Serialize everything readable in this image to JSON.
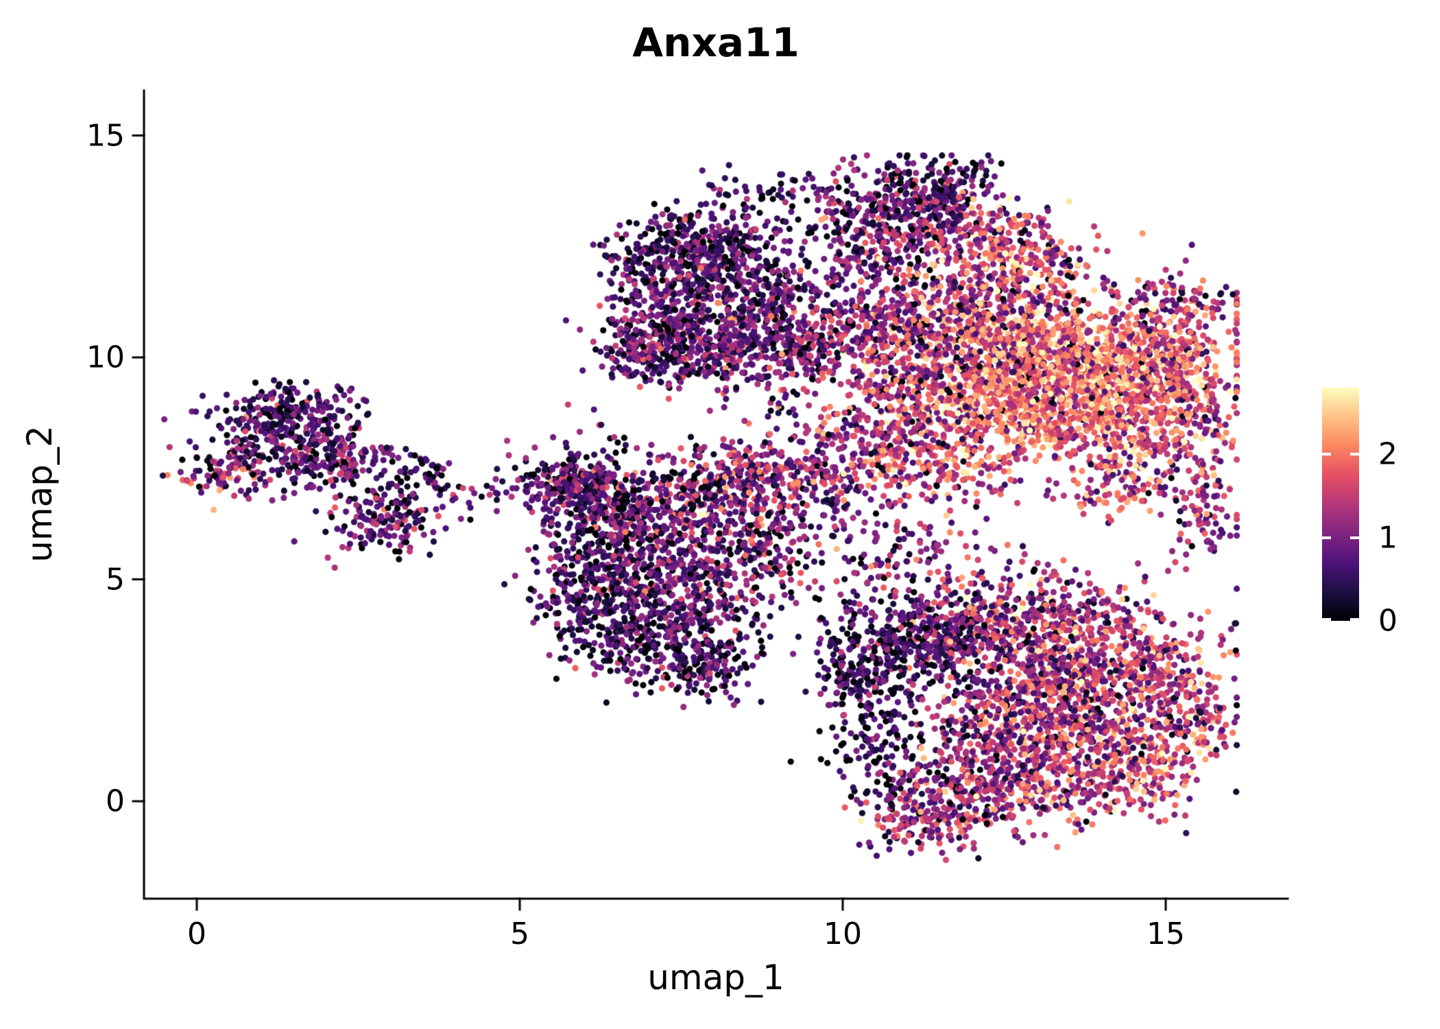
{
  "chart_data": {
    "type": "scatter",
    "title": "Anxa11",
    "xlabel": "umap_1",
    "ylabel": "umap_2",
    "x_ticks": [
      0,
      5,
      10,
      15
    ],
    "y_ticks": [
      0,
      5,
      10,
      15
    ],
    "xlim": [
      -0.8,
      16.9
    ],
    "ylim": [
      -2.2,
      15.7
    ],
    "grid": false,
    "legend_position": "right",
    "colorbar": {
      "label_values": [
        0,
        1,
        2
      ],
      "ticks": [
        0,
        1,
        2
      ],
      "vmin": 0,
      "vmax": 2.8,
      "colormap": "magma",
      "stops": [
        "#000004",
        "#1c1044",
        "#4f127b",
        "#812581",
        "#b5367a",
        "#e55064",
        "#fb8761",
        "#fec287",
        "#fcfdbf"
      ]
    },
    "point_radius_px": 4.6,
    "seed": 42,
    "cluster_format": [
      "center_x",
      "center_y",
      "sd_x",
      "sd_y",
      "n_points",
      "expression_mean",
      "expression_sd"
    ],
    "clusters": [
      [
        1.3,
        8.3,
        0.55,
        0.5,
        260,
        0.7,
        0.55
      ],
      [
        2.1,
        7.7,
        0.5,
        0.4,
        170,
        0.7,
        0.5
      ],
      [
        0.4,
        7.35,
        0.35,
        0.25,
        90,
        0.9,
        0.7
      ],
      [
        2.9,
        6.35,
        0.45,
        0.4,
        160,
        0.7,
        0.55
      ],
      [
        1.6,
        8.95,
        0.45,
        0.22,
        80,
        0.45,
        0.45
      ],
      [
        3.5,
        7.4,
        0.3,
        0.2,
        40,
        0.6,
        0.5
      ],
      [
        6.2,
        6.9,
        0.5,
        0.6,
        280,
        0.75,
        0.55
      ],
      [
        7.3,
        6.4,
        0.65,
        0.55,
        300,
        0.85,
        0.6
      ],
      [
        6.5,
        5.3,
        0.55,
        0.65,
        270,
        0.6,
        0.5
      ],
      [
        7.6,
        4.6,
        0.55,
        0.6,
        250,
        0.7,
        0.55
      ],
      [
        6.9,
        3.6,
        0.5,
        0.5,
        200,
        0.5,
        0.5
      ],
      [
        7.9,
        3.1,
        0.4,
        0.45,
        150,
        0.5,
        0.5
      ],
      [
        8.6,
        5.8,
        0.5,
        0.75,
        220,
        0.9,
        0.6
      ],
      [
        5.9,
        4.6,
        0.35,
        0.6,
        130,
        0.45,
        0.45
      ],
      [
        5.8,
        7.1,
        0.3,
        0.45,
        100,
        0.6,
        0.5
      ],
      [
        8.3,
        7.3,
        0.45,
        0.4,
        150,
        1.0,
        0.6
      ],
      [
        9.4,
        7.2,
        0.6,
        0.35,
        110,
        1.0,
        0.6
      ],
      [
        8.0,
        12.7,
        0.55,
        0.4,
        220,
        0.6,
        0.5
      ],
      [
        7.6,
        11.9,
        0.5,
        0.5,
        220,
        0.7,
        0.55
      ],
      [
        7.4,
        10.7,
        0.55,
        0.5,
        260,
        0.8,
        0.55
      ],
      [
        8.3,
        10.2,
        0.6,
        0.5,
        260,
        0.85,
        0.6
      ],
      [
        8.8,
        11.4,
        0.5,
        0.55,
        200,
        0.7,
        0.55
      ],
      [
        9.4,
        10.2,
        0.4,
        0.5,
        150,
        0.9,
        0.6
      ],
      [
        7.0,
        9.9,
        0.4,
        0.4,
        120,
        0.7,
        0.5
      ],
      [
        6.8,
        12.2,
        0.3,
        0.4,
        70,
        0.6,
        0.5
      ],
      [
        10.6,
        13.4,
        0.5,
        0.45,
        160,
        0.75,
        0.6
      ],
      [
        11.5,
        13.9,
        0.5,
        0.35,
        150,
        0.55,
        0.5
      ],
      [
        11.4,
        13.0,
        0.5,
        0.4,
        150,
        1.0,
        0.65
      ],
      [
        12.3,
        12.7,
        0.5,
        0.5,
        160,
        1.5,
        0.6
      ],
      [
        10.3,
        12.4,
        0.4,
        0.4,
        100,
        0.9,
        0.6
      ],
      [
        12.9,
        11.9,
        0.45,
        0.45,
        130,
        1.7,
        0.55
      ],
      [
        12.3,
        10.3,
        0.8,
        0.7,
        420,
        1.8,
        0.55
      ],
      [
        13.6,
        9.9,
        0.8,
        0.6,
        450,
        2.0,
        0.5
      ],
      [
        14.8,
        9.8,
        0.7,
        0.6,
        380,
        1.9,
        0.55
      ],
      [
        12.6,
        8.9,
        0.7,
        0.5,
        320,
        2.0,
        0.5
      ],
      [
        13.9,
        8.6,
        0.7,
        0.5,
        300,
        1.8,
        0.55
      ],
      [
        11.2,
        9.3,
        0.6,
        0.6,
        250,
        1.4,
        0.6
      ],
      [
        10.6,
        10.6,
        0.5,
        0.5,
        180,
        1.1,
        0.6
      ],
      [
        11.6,
        11.3,
        0.6,
        0.5,
        180,
        1.2,
        0.6
      ],
      [
        15.3,
        8.5,
        0.45,
        0.7,
        200,
        1.5,
        0.6
      ],
      [
        15.1,
        11.0,
        0.5,
        0.5,
        150,
        1.3,
        0.6
      ],
      [
        11.5,
        7.5,
        0.7,
        0.45,
        200,
        1.6,
        0.6
      ],
      [
        10.4,
        8.2,
        0.5,
        0.5,
        150,
        1.2,
        0.6
      ],
      [
        15.6,
        6.4,
        0.3,
        0.5,
        70,
        1.0,
        0.6
      ],
      [
        14.3,
        7.2,
        0.5,
        0.4,
        130,
        1.5,
        0.6
      ],
      [
        12.5,
        10.8,
        1.5,
        0.9,
        150,
        0.4,
        0.5
      ],
      [
        13.5,
        9.3,
        1.5,
        1.0,
        120,
        0.5,
        0.5
      ],
      [
        10.8,
        3.6,
        0.6,
        0.6,
        280,
        0.45,
        0.45
      ],
      [
        11.8,
        3.9,
        0.6,
        0.6,
        250,
        1.0,
        0.6
      ],
      [
        12.8,
        3.9,
        0.65,
        0.65,
        300,
        1.3,
        0.6
      ],
      [
        13.9,
        3.5,
        0.65,
        0.65,
        300,
        1.4,
        0.6
      ],
      [
        14.8,
        2.7,
        0.55,
        0.65,
        250,
        1.5,
        0.6
      ],
      [
        13.3,
        2.2,
        0.65,
        0.6,
        280,
        1.3,
        0.6
      ],
      [
        12.3,
        1.5,
        0.6,
        0.65,
        250,
        1.2,
        0.6
      ],
      [
        13.9,
        1.2,
        0.6,
        0.55,
        220,
        1.5,
        0.6
      ],
      [
        12.9,
        0.3,
        0.65,
        0.5,
        220,
        1.4,
        0.6
      ],
      [
        11.6,
        0.2,
        0.5,
        0.45,
        150,
        1.0,
        0.6
      ],
      [
        10.5,
        1.4,
        0.35,
        0.75,
        130,
        0.55,
        0.5
      ],
      [
        11.3,
        -0.5,
        0.5,
        0.35,
        120,
        1.2,
        0.6
      ],
      [
        14.6,
        0.7,
        0.5,
        0.5,
        150,
        1.6,
        0.6
      ],
      [
        10.2,
        2.7,
        0.3,
        0.4,
        80,
        0.4,
        0.45
      ],
      [
        15.4,
        1.8,
        0.35,
        0.5,
        90,
        1.4,
        0.6
      ],
      [
        12.8,
        2.5,
        1.5,
        1.3,
        150,
        0.3,
        0.4
      ],
      [
        9.3,
        8.2,
        1.1,
        1.3,
        130,
        0.9,
        0.7
      ],
      [
        9.9,
        11.2,
        0.5,
        0.8,
        80,
        0.9,
        0.6
      ],
      [
        10.0,
        5.9,
        0.8,
        0.8,
        90,
        0.9,
        0.7
      ],
      [
        11.2,
        5.6,
        0.6,
        0.5,
        70,
        1.1,
        0.6
      ],
      [
        5.2,
        7.2,
        0.25,
        0.3,
        40,
        0.6,
        0.5
      ],
      [
        9.0,
        13.8,
        0.6,
        0.4,
        60,
        0.5,
        0.5
      ],
      [
        4.3,
        6.9,
        0.25,
        0.2,
        15,
        0.6,
        0.5
      ]
    ]
  }
}
